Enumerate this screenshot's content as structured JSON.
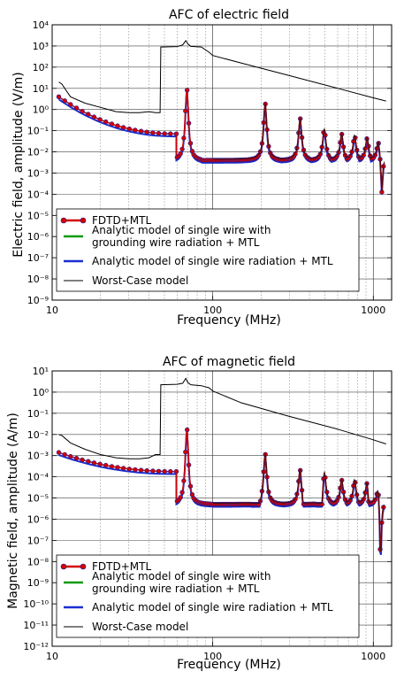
{
  "colors": {
    "fdtd": "#d40000",
    "fdtd_marker_edge": "#1f1f9a",
    "analytic_ground": "#0a9a0a",
    "analytic_single": "#1a2fd0",
    "worst_case": "#000000",
    "grid": "#888888"
  },
  "chart_data": [
    {
      "type": "line",
      "title": "AFC of electric field",
      "xlabel": "Frequency (MHz)",
      "ylabel": "Electric field, amplitude (V/m)",
      "xscale": "log",
      "yscale": "log",
      "xlim": [
        10,
        1300
      ],
      "ylim_exp": [
        -9,
        4
      ],
      "x_ticks": [
        {
          "v": 10,
          "label": "10"
        },
        {
          "v": 100,
          "label": "100"
        },
        {
          "v": 1000,
          "label": "1000"
        }
      ],
      "y_ticks": [
        {
          "e": 4,
          "label": "10⁴"
        },
        {
          "e": 3,
          "label": "10³"
        },
        {
          "e": 2,
          "label": "10²"
        },
        {
          "e": 1,
          "label": "10¹"
        },
        {
          "e": 0,
          "label": "10⁰"
        },
        {
          "e": -1,
          "label": "10⁻¹"
        },
        {
          "e": -2,
          "label": "10⁻²"
        },
        {
          "e": -3,
          "label": "10⁻³"
        },
        {
          "e": -4,
          "label": "10⁻⁴"
        },
        {
          "e": -5,
          "label": "10⁻⁵"
        },
        {
          "e": -6,
          "label": "10⁻⁶"
        },
        {
          "e": -7,
          "label": "10⁻⁷"
        },
        {
          "e": -8,
          "label": "10⁻⁸"
        },
        {
          "e": -9,
          "label": "10⁻⁹"
        }
      ],
      "grid": true,
      "legend_position": "lower-left",
      "legend": [
        {
          "label": "FDTD+MTL",
          "style": "marker-line",
          "color_key": "fdtd"
        },
        {
          "label": "Analytic model of single wire with\ngrounding wire radiation + MTL",
          "style": "line",
          "color_key": "analytic_ground"
        },
        {
          "label": "Analytic model of single wire radiation + MTL",
          "style": "line",
          "color_key": "analytic_single"
        },
        {
          "label": "Worst-Case model",
          "style": "thin-line",
          "color_key": "worst_case"
        }
      ],
      "worst_case": {
        "x": [
          11,
          11.5,
          13,
          16,
          20,
          25,
          30,
          35,
          40,
          44,
          47,
          47.5,
          60,
          65,
          68,
          70,
          73,
          85,
          95,
          100,
          150,
          300,
          600,
          1000,
          1200
        ],
        "y_log": [
          1.3,
          1.2,
          0.6,
          0.3,
          0.1,
          -0.1,
          -0.15,
          -0.15,
          -0.1,
          -0.15,
          -0.15,
          2.95,
          2.97,
          3.05,
          3.25,
          3.1,
          2.98,
          2.95,
          2.7,
          2.55,
          2.2,
          1.6,
          1.0,
          0.55,
          0.4
        ]
      },
      "fdtd": {
        "start_f": 11,
        "start_log": 0.6,
        "end_log_before_first": -1.15,
        "resonances": [
          {
            "f": 69,
            "peak_log": 1.0,
            "dip_f": 92,
            "dip_log": -3.6
          },
          {
            "f": 212,
            "peak_log": 0.3,
            "dip_f": 310,
            "dip_log": -4.5
          },
          {
            "f": 350,
            "peak_log": -0.4,
            "dip_f": 460,
            "dip_log": -4.3
          },
          {
            "f": 495,
            "peak_log": -0.9,
            "dip_f": 590,
            "dip_log": -4.4
          },
          {
            "f": 635,
            "peak_log": -1.1,
            "dip_f": 720,
            "dip_log": -4.2
          },
          {
            "f": 765,
            "peak_log": -1.2,
            "dip_f": 860,
            "dip_log": -3.7
          },
          {
            "f": 915,
            "peak_log": -1.3,
            "dip_f": 1010,
            "dip_log": -4.0
          },
          {
            "f": 1075,
            "peak_log": -1.4,
            "dip_f": 1130,
            "dip_log": -3.9
          }
        ],
        "valley_log": -2.4
      }
    },
    {
      "type": "line",
      "title": "AFC of magnetic field",
      "xlabel": "Frequency (MHz)",
      "ylabel": "Magnetic field, amplitude (A/m)",
      "xscale": "log",
      "yscale": "log",
      "xlim": [
        10,
        1300
      ],
      "ylim_exp": [
        -12,
        1
      ],
      "x_ticks": [
        {
          "v": 10,
          "label": "10"
        },
        {
          "v": 100,
          "label": "100"
        },
        {
          "v": 1000,
          "label": "1000"
        }
      ],
      "y_ticks": [
        {
          "e": 1,
          "label": "10¹"
        },
        {
          "e": 0,
          "label": "10⁰"
        },
        {
          "e": -1,
          "label": "10⁻¹"
        },
        {
          "e": -2,
          "label": "10⁻²"
        },
        {
          "e": -3,
          "label": "10⁻³"
        },
        {
          "e": -4,
          "label": "10⁻⁴"
        },
        {
          "e": -5,
          "label": "10⁻⁵"
        },
        {
          "e": -6,
          "label": "10⁻⁶"
        },
        {
          "e": -7,
          "label": "10⁻⁷"
        },
        {
          "e": -8,
          "label": "10⁻⁸"
        },
        {
          "e": -9,
          "label": "10⁻⁹"
        },
        {
          "e": -10,
          "label": "10⁻¹⁰"
        },
        {
          "e": -11,
          "label": "10⁻¹¹"
        },
        {
          "e": -12,
          "label": "10⁻¹²"
        }
      ],
      "grid": true,
      "legend_position": "lower-left",
      "legend": [
        {
          "label": "FDTD+MTL",
          "style": "marker-line",
          "color_key": "fdtd"
        },
        {
          "label": "Analytic model of single wire with\ngrounding wire radiation + MTL",
          "style": "line",
          "color_key": "analytic_ground"
        },
        {
          "label": "Analytic model of single wire radiation + MTL",
          "style": "line",
          "color_key": "analytic_single"
        },
        {
          "label": "Worst-Case model",
          "style": "thin-line",
          "color_key": "worst_case"
        }
      ],
      "worst_case": {
        "x": [
          11,
          11.5,
          13,
          16,
          20,
          25,
          30,
          35,
          40,
          44,
          47,
          47.5,
          60,
          65,
          68,
          70,
          73,
          85,
          95,
          100,
          150,
          300,
          600,
          1000,
          1200
        ],
        "y_log": [
          -2.0,
          -2.05,
          -2.4,
          -2.7,
          -2.95,
          -3.1,
          -3.15,
          -3.15,
          -3.1,
          -2.95,
          -2.95,
          0.35,
          0.37,
          0.42,
          0.65,
          0.45,
          0.35,
          0.3,
          0.2,
          0.05,
          -0.5,
          -1.15,
          -1.75,
          -2.25,
          -2.45
        ]
      },
      "fdtd": {
        "start_f": 11,
        "start_log": -2.85,
        "end_log_before_first": -3.75,
        "resonances": [
          {
            "f": 69,
            "peak_log": -1.7,
            "dip_f": 112,
            "dip_log": -6.0
          },
          {
            "f": 212,
            "peak_log": -2.85,
            "dip_f": 190,
            "dip_log": -7.0
          },
          {
            "f": 350,
            "peak_log": -3.5,
            "dip_f": 375,
            "dip_log": -7.5
          },
          {
            "f": 495,
            "peak_log": -3.55,
            "dip_f": 470,
            "dip_log": -7.3
          },
          {
            "f": 635,
            "peak_log": -4.1,
            "dip_f": 740,
            "dip_log": -8.0
          },
          {
            "f": 765,
            "peak_log": -4.1,
            "dip_f": 860,
            "dip_log": -7.5
          },
          {
            "f": 915,
            "peak_log": -4.0,
            "dip_f": 960,
            "dip_log": -8.2
          },
          {
            "f": 1075,
            "peak_log": -4.2,
            "dip_f": 1110,
            "dip_log": -8.0
          }
        ],
        "valley_log": -5.3
      }
    }
  ]
}
